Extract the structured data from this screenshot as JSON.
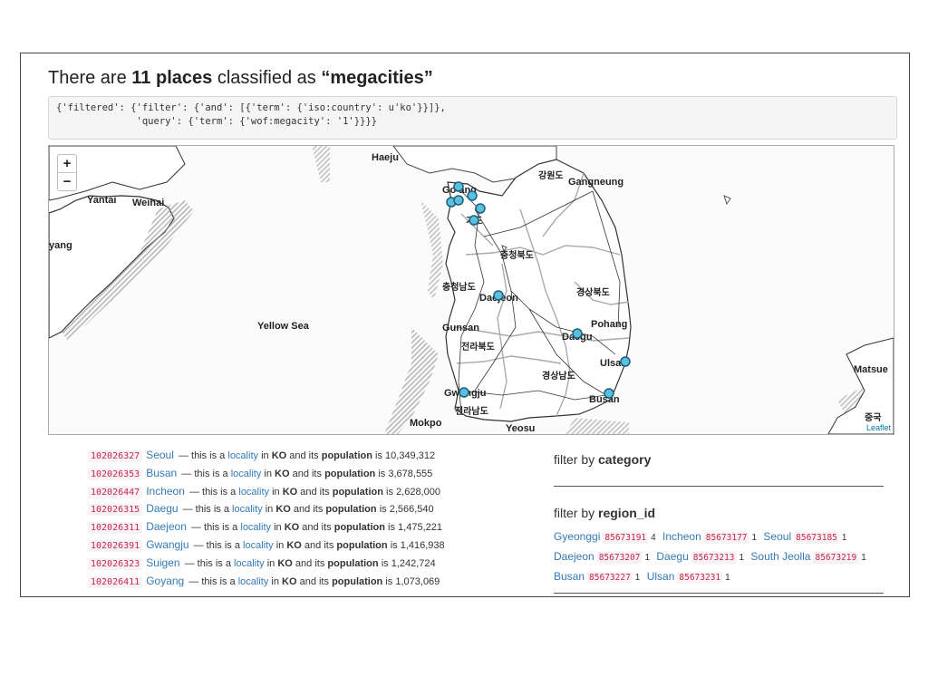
{
  "header": {
    "prefix": "There are",
    "count": "11 places",
    "middle": "classified as",
    "term": "“megacities”"
  },
  "query": {
    "line1": "{'filtered': {'filter': {'and': [{'term': {'iso:country': u'ko'}}]},",
    "line2": "              'query': {'term': {'wof:megacity': '1'}}}}"
  },
  "map": {
    "zoom_in": "+",
    "zoom_out": "−",
    "attribution": "Leaflet",
    "labels": [
      "Haeju",
      "강원도",
      "Gangneung",
      "Yantai",
      "Weihai",
      "yang",
      "Go ang",
      "충청북도",
      "충청남도",
      "Daejeon",
      "경상북도",
      "Yellow Sea",
      "Pohang",
      "Gunsan",
      "Daegu",
      "전라북도",
      "Ulsan",
      "Matsue",
      "경상남도",
      "Gwangju",
      "Busan",
      "전라남도",
      "Mokpo",
      "Yeosu",
      "중국",
      "기도"
    ],
    "marker_color": "#5bc0de"
  },
  "places": [
    {
      "id": "102026327",
      "name": "Seoul",
      "type": "locality",
      "country": "KO",
      "population": "10,349,312"
    },
    {
      "id": "102026353",
      "name": "Busan",
      "type": "locality",
      "country": "KO",
      "population": "3,678,555"
    },
    {
      "id": "102026447",
      "name": "Incheon",
      "type": "locality",
      "country": "KO",
      "population": "2,628,000"
    },
    {
      "id": "102026315",
      "name": "Daegu",
      "type": "locality",
      "country": "KO",
      "population": "2,566,540"
    },
    {
      "id": "102026311",
      "name": "Daejeon",
      "type": "locality",
      "country": "KO",
      "population": "1,475,221"
    },
    {
      "id": "102026391",
      "name": "Gwangju",
      "type": "locality",
      "country": "KO",
      "population": "1,416,938"
    },
    {
      "id": "102026323",
      "name": "Suigen",
      "type": "locality",
      "country": "KO",
      "population": "1,242,724"
    },
    {
      "id": "102026411",
      "name": "Goyang",
      "type": "locality",
      "country": "KO",
      "population": "1,073,069"
    }
  ],
  "row_text": {
    "dash": "— this is a",
    "in": "in",
    "pop_label": "and its",
    "pop_word": "population",
    "is": "is"
  },
  "filters": {
    "category_prefix": "filter by",
    "category_key": "category",
    "region_prefix": "filter by",
    "region_key": "region_id",
    "regions": [
      {
        "name": "Gyeonggi",
        "id": "85673191",
        "count": "4"
      },
      {
        "name": "Incheon",
        "id": "85673177",
        "count": "1"
      },
      {
        "name": "Seoul",
        "id": "85673185",
        "count": "1"
      },
      {
        "name": "Daejeon",
        "id": "85673207",
        "count": "1"
      },
      {
        "name": "Daegu",
        "id": "85673213",
        "count": "1"
      },
      {
        "name": "South Jeolla",
        "id": "85673219",
        "count": "1"
      },
      {
        "name": "Busan",
        "id": "85673227",
        "count": "1"
      },
      {
        "name": "Ulsan",
        "id": "85673231",
        "count": "1"
      }
    ]
  }
}
